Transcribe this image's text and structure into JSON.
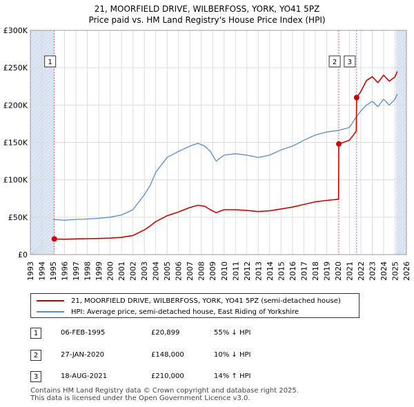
{
  "header": {
    "title_line1": "21, MOORFIELD DRIVE, WILBERFOSS, YORK, YO41 5PZ",
    "title_line2": "Price paid vs. HM Land Registry's House Price Index (HPI)"
  },
  "colors": {
    "property": "#cc0000",
    "hpi": "#5b8cc8",
    "shade": "#dde6f3",
    "grid": "#dddddd",
    "marker_line": "#cc0000"
  },
  "chart_data": {
    "type": "line",
    "title": "Price paid vs. HM Land Registry's House Price Index (HPI)",
    "xlabel": "",
    "ylabel": "",
    "xlim": [
      1993,
      2026
    ],
    "ylim": [
      0,
      300000
    ],
    "x_ticks": [
      1993,
      1994,
      1995,
      1996,
      1997,
      1998,
      1999,
      2000,
      2001,
      2002,
      2003,
      2004,
      2005,
      2006,
      2007,
      2008,
      2009,
      2010,
      2011,
      2012,
      2013,
      2014,
      2015,
      2016,
      2017,
      2018,
      2019,
      2020,
      2021,
      2022,
      2023,
      2024,
      2025,
      2026
    ],
    "y_ticks": [
      {
        "value": 0,
        "label": "£0"
      },
      {
        "value": 50000,
        "label": "£50K"
      },
      {
        "value": 100000,
        "label": "£100K"
      },
      {
        "value": 150000,
        "label": "£150K"
      },
      {
        "value": 200000,
        "label": "£200K"
      },
      {
        "value": 250000,
        "label": "£250K"
      },
      {
        "value": 300000,
        "label": "£300K"
      }
    ],
    "shaded_ranges": [
      [
        1993,
        1995.1
      ],
      [
        2025.1,
        2026
      ]
    ],
    "series": [
      {
        "name": "21, MOORFIELD DRIVE, WILBERFOSS, YORK, YO41 5PZ (semi-detached house)",
        "color": "#cc0000",
        "x": [
          1995.1,
          1996,
          1997,
          1998,
          1999,
          2000,
          2001,
          2002,
          2003,
          2003.5,
          2004,
          2005,
          2006,
          2007,
          2007.7,
          2008.3,
          2008.8,
          2009.3,
          2010,
          2011,
          2012,
          2013,
          2014,
          2015,
          2016,
          2017,
          2018,
          2019,
          2020.05,
          2020.07,
          2021,
          2021.6,
          2021.63,
          2022,
          2022.5,
          2023,
          2023.5,
          2024,
          2024.5,
          2025,
          2025.2
        ],
        "y": [
          20899,
          20500,
          21000,
          21200,
          21500,
          22000,
          23000,
          25500,
          33000,
          38000,
          44000,
          52000,
          57000,
          63000,
          66000,
          64500,
          60000,
          56000,
          60000,
          60000,
          59000,
          57500,
          58500,
          61000,
          63500,
          67000,
          70500,
          72500,
          74000,
          148000,
          153000,
          165000,
          210000,
          218000,
          233000,
          238000,
          230000,
          240000,
          232000,
          238000,
          245000
        ]
      },
      {
        "name": "HPI: Average price, semi-detached house, East Riding of Yorkshire",
        "color": "#5b8cc8",
        "x": [
          1995,
          1996,
          1997,
          1998,
          1999,
          2000,
          2001,
          2002,
          2003,
          2003.5,
          2004,
          2005,
          2006,
          2007,
          2007.7,
          2008.3,
          2008.8,
          2009.3,
          2010,
          2011,
          2012,
          2013,
          2014,
          2015,
          2016,
          2017,
          2018,
          2019,
          2020,
          2021,
          2021.6,
          2022,
          2022.5,
          2023,
          2023.5,
          2024,
          2024.5,
          2025,
          2025.2
        ],
        "y": [
          47000,
          46000,
          47000,
          47500,
          48500,
          50000,
          53000,
          60000,
          80000,
          92000,
          110000,
          130000,
          138000,
          145000,
          149000,
          145000,
          138000,
          125000,
          133000,
          135000,
          133000,
          130000,
          133000,
          140000,
          145000,
          153000,
          160000,
          164000,
          166000,
          170000,
          184000,
          192000,
          200000,
          205000,
          198000,
          208000,
          200000,
          208000,
          215000
        ]
      }
    ],
    "sales": [
      {
        "label": "1",
        "x": 1995.1,
        "y": 20899
      },
      {
        "label": "2",
        "x": 2020.07,
        "y": 148000
      },
      {
        "label": "3",
        "x": 2021.63,
        "y": 210000
      }
    ]
  },
  "legend": {
    "property": "21, MOORFIELD DRIVE, WILBERFOSS, YORK, YO41 5PZ (semi-detached house)",
    "hpi": "HPI: Average price, semi-detached house, East Riding of Yorkshire"
  },
  "transactions": [
    {
      "num": "1",
      "date": "06-FEB-1995",
      "price": "£20,899",
      "hpi": "55% ↓ HPI"
    },
    {
      "num": "2",
      "date": "27-JAN-2020",
      "price": "£148,000",
      "hpi": "10% ↓ HPI"
    },
    {
      "num": "3",
      "date": "18-AUG-2021",
      "price": "£210,000",
      "hpi": "14% ↑ HPI"
    }
  ],
  "footer": {
    "line1": "Contains HM Land Registry data © Crown copyright and database right 2025.",
    "line2": "This data is licensed under the Open Government Licence v3.0."
  }
}
